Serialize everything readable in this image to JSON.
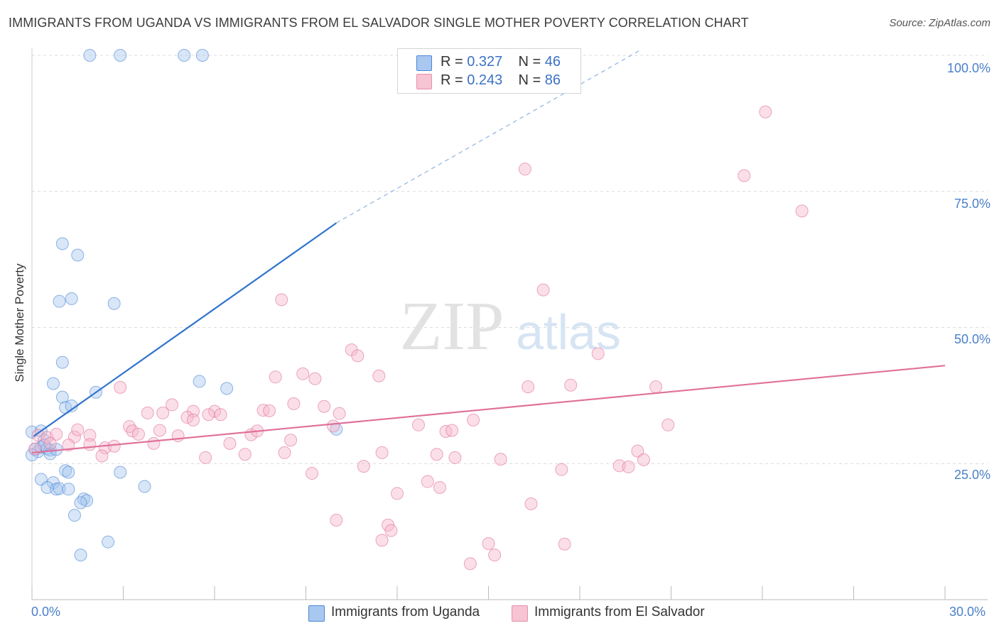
{
  "title": "IMMIGRANTS FROM UGANDA VS IMMIGRANTS FROM EL SALVADOR SINGLE MOTHER POVERTY CORRELATION CHART",
  "source": "Source: ZipAtlas.com",
  "watermark": {
    "zip": "ZIP",
    "atlas": "atlas"
  },
  "legend": {
    "rows": [
      {
        "r_label": "R = ",
        "r_value": "0.327",
        "n_label": "N = ",
        "n_value": "46",
        "color": "#a9c8f0"
      },
      {
        "r_label": "R = ",
        "r_value": "0.243",
        "n_label": "N = ",
        "n_value": "86",
        "color": "#f6b8cb"
      }
    ]
  },
  "bottom_legend": [
    {
      "label": "Immigrants from Uganda",
      "color": "#a9c8f0"
    },
    {
      "label": "Immigrants from El Salvador",
      "color": "#f6b8cb"
    }
  ],
  "chart_data": {
    "type": "scatter",
    "title": "IMMIGRANTS FROM UGANDA VS IMMIGRANTS FROM EL SALVADOR SINGLE MOTHER POVERTY CORRELATION CHART",
    "xlabel": "",
    "ylabel": "Single Mother Poverty",
    "xlim": [
      0,
      30
    ],
    "ylim": [
      0,
      100
    ],
    "x_tick_labels": [
      "0.0%",
      "30.0%"
    ],
    "y_tick_labels": [
      "25.0%",
      "50.0%",
      "75.0%",
      "100.0%"
    ],
    "y_ticks": [
      25,
      50,
      75,
      100
    ],
    "grid": true,
    "legend_position": "top-center",
    "series": [
      {
        "name": "Immigrants from Uganda",
        "color": "#4a86d4",
        "fill": "#a9c8f0",
        "R": 0.327,
        "N": 46,
        "trend": {
          "x": [
            0.05,
            10.0
          ],
          "y": [
            30.0,
            69.2
          ],
          "dashed_to": [
            20.0,
            101.0
          ]
        },
        "points": [
          [
            1.9,
            100
          ],
          [
            2.9,
            100
          ],
          [
            5.0,
            100
          ],
          [
            5.6,
            100
          ],
          [
            1.0,
            65.4
          ],
          [
            1.5,
            63.3
          ],
          [
            1.3,
            55.3
          ],
          [
            0.9,
            54.8
          ],
          [
            2.7,
            54.4
          ],
          [
            1.0,
            43.6
          ],
          [
            0.7,
            39.7
          ],
          [
            2.1,
            38.1
          ],
          [
            5.5,
            40.1
          ],
          [
            6.4,
            38.8
          ],
          [
            1.0,
            37.2
          ],
          [
            1.1,
            35.3
          ],
          [
            1.3,
            35.6
          ],
          [
            0.0,
            30.8
          ],
          [
            0.3,
            31.0
          ],
          [
            0.4,
            29.3
          ],
          [
            0.1,
            27.6
          ],
          [
            0.2,
            27.2
          ],
          [
            0.3,
            28.0
          ],
          [
            0.5,
            27.7
          ],
          [
            0.6,
            27.5
          ],
          [
            0.0,
            26.6
          ],
          [
            0.6,
            26.8
          ],
          [
            10.0,
            31.3
          ],
          [
            1.1,
            23.7
          ],
          [
            1.2,
            23.4
          ],
          [
            2.9,
            23.4
          ],
          [
            0.3,
            22.1
          ],
          [
            0.7,
            21.5
          ],
          [
            0.5,
            20.6
          ],
          [
            0.8,
            20.3
          ],
          [
            0.9,
            20.4
          ],
          [
            1.2,
            20.3
          ],
          [
            3.7,
            20.8
          ],
          [
            1.7,
            18.5
          ],
          [
            1.8,
            18.2
          ],
          [
            1.6,
            17.8
          ],
          [
            1.4,
            15.5
          ],
          [
            2.5,
            10.6
          ],
          [
            1.6,
            8.2
          ],
          [
            0.8,
            27.6
          ],
          [
            0.4,
            28.4
          ]
        ]
      },
      {
        "name": "Immigrants from El Salvador",
        "color": "#e0709a",
        "fill": "#f6b8cb",
        "R": 0.243,
        "N": 86,
        "trend": {
          "x": [
            0.0,
            30.0
          ],
          "y": [
            27.0,
            43.0
          ]
        },
        "points": [
          [
            24.1,
            89.6
          ],
          [
            16.2,
            79.1
          ],
          [
            23.4,
            77.9
          ],
          [
            25.3,
            71.4
          ],
          [
            16.8,
            56.9
          ],
          [
            8.2,
            55.1
          ],
          [
            10.5,
            45.9
          ],
          [
            10.7,
            44.8
          ],
          [
            18.6,
            45.2
          ],
          [
            11.4,
            41.1
          ],
          [
            8.9,
            41.5
          ],
          [
            9.3,
            40.6
          ],
          [
            8.0,
            40.9
          ],
          [
            2.9,
            39.0
          ],
          [
            16.3,
            39.1
          ],
          [
            17.7,
            39.4
          ],
          [
            20.5,
            39.1
          ],
          [
            4.6,
            35.8
          ],
          [
            5.3,
            34.6
          ],
          [
            6.0,
            34.6
          ],
          [
            7.6,
            34.8
          ],
          [
            7.8,
            34.7
          ],
          [
            3.8,
            34.3
          ],
          [
            4.3,
            34.3
          ],
          [
            5.8,
            34.0
          ],
          [
            6.2,
            34.0
          ],
          [
            8.6,
            36.0
          ],
          [
            9.6,
            35.5
          ],
          [
            10.1,
            34.2
          ],
          [
            5.1,
            33.5
          ],
          [
            5.3,
            33.0
          ],
          [
            14.5,
            33.0
          ],
          [
            3.2,
            31.8
          ],
          [
            3.3,
            31.0
          ],
          [
            3.5,
            30.4
          ],
          [
            4.2,
            31.1
          ],
          [
            4.8,
            30.1
          ],
          [
            7.2,
            30.3
          ],
          [
            7.4,
            31.0
          ],
          [
            9.9,
            31.9
          ],
          [
            12.7,
            32.1
          ],
          [
            13.6,
            30.9
          ],
          [
            13.8,
            31.1
          ],
          [
            20.9,
            32.1
          ],
          [
            0.2,
            30.2
          ],
          [
            0.5,
            29.8
          ],
          [
            0.8,
            30.4
          ],
          [
            1.4,
            29.9
          ],
          [
            1.9,
            30.2
          ],
          [
            0.6,
            28.7
          ],
          [
            1.2,
            28.4
          ],
          [
            1.9,
            28.5
          ],
          [
            2.4,
            27.9
          ],
          [
            2.7,
            28.2
          ],
          [
            4.0,
            28.7
          ],
          [
            6.5,
            28.7
          ],
          [
            8.5,
            29.3
          ],
          [
            1.5,
            31.2
          ],
          [
            2.3,
            26.4
          ],
          [
            5.7,
            26.1
          ],
          [
            7.0,
            26.7
          ],
          [
            8.3,
            27.0
          ],
          [
            11.5,
            27.0
          ],
          [
            13.3,
            26.7
          ],
          [
            13.9,
            26.1
          ],
          [
            15.4,
            25.8
          ],
          [
            19.9,
            27.3
          ],
          [
            20.1,
            25.7
          ],
          [
            10.9,
            24.5
          ],
          [
            19.3,
            24.6
          ],
          [
            19.6,
            24.4
          ],
          [
            17.4,
            23.9
          ],
          [
            9.2,
            23.2
          ],
          [
            13.0,
            21.7
          ],
          [
            13.4,
            20.6
          ],
          [
            12.0,
            19.5
          ],
          [
            16.4,
            17.6
          ],
          [
            10.0,
            14.6
          ],
          [
            11.7,
            13.7
          ],
          [
            11.8,
            12.7
          ],
          [
            11.5,
            10.9
          ],
          [
            15.0,
            10.3
          ],
          [
            17.5,
            10.2
          ],
          [
            15.2,
            8.2
          ],
          [
            14.4,
            6.6
          ],
          [
            0.1,
            27.7
          ]
        ]
      }
    ]
  }
}
